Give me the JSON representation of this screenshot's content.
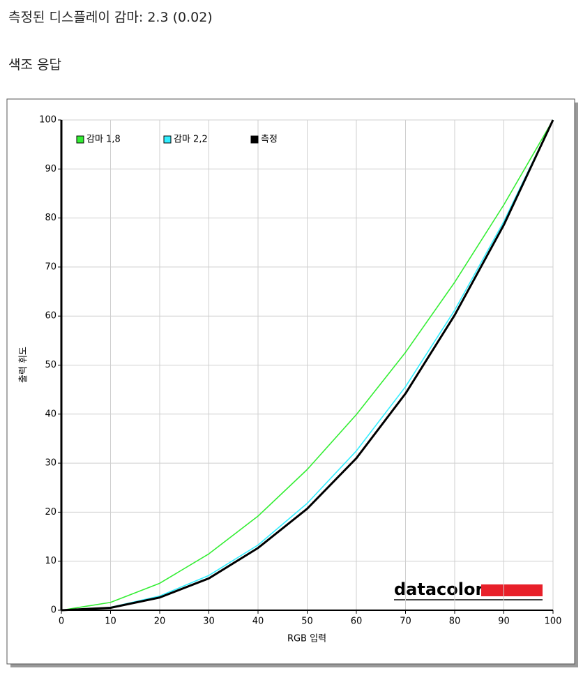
{
  "header": {
    "gamma_line": "측정된 디스플레이 감마: 2.3 (0.02)",
    "section_title": "색조 응답"
  },
  "chart_data": {
    "type": "line",
    "x_label": "RGB 입력",
    "y_label": "출력 휘도",
    "watermark": "datacolor",
    "x": [
      0,
      10,
      20,
      30,
      40,
      50,
      60,
      70,
      80,
      90,
      100
    ],
    "series": [
      {
        "name": "감마 1,8",
        "color": "#33ee33",
        "values": [
          0,
          1.6,
          5.5,
          11.5,
          19.2,
          28.7,
          39.9,
          52.6,
          66.9,
          82.7,
          100
        ]
      },
      {
        "name": "감마 2,2",
        "color": "#33eeff",
        "values": [
          0,
          0.6,
          2.9,
          7.1,
          13.3,
          21.8,
          32.5,
          45.6,
          61.2,
          79.3,
          100
        ]
      },
      {
        "name": "측정",
        "color": "#000000",
        "values": [
          0,
          0.5,
          2.6,
          6.5,
          12.7,
          20.7,
          31.0,
          44.2,
          60.2,
          78.6,
          100
        ]
      }
    ],
    "xlim": [
      0,
      100
    ],
    "xticks": [
      0,
      10,
      20,
      30,
      40,
      50,
      60,
      70,
      80,
      90,
      100
    ],
    "ylim": [
      0,
      100
    ],
    "yticks": [
      0,
      10,
      20,
      30,
      40,
      50,
      60,
      70,
      80,
      90,
      100
    ],
    "grid": true,
    "legend": "top-left"
  }
}
